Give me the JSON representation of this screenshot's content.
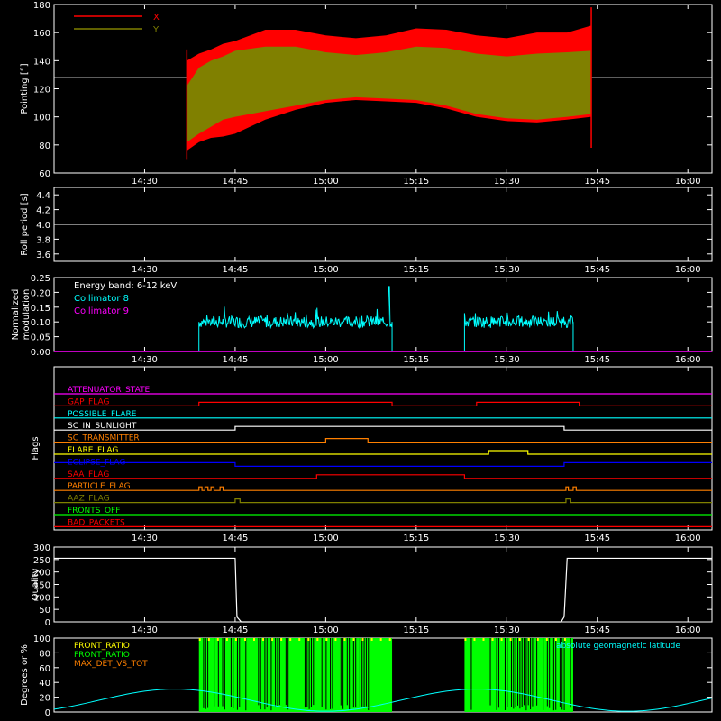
{
  "chart_data": [
    {
      "id": "pointing",
      "type": "area",
      "ylabel": "Pointing [°]",
      "ylim": [
        60,
        180
      ],
      "yticks": [
        60,
        80,
        100,
        120,
        140,
        160,
        180
      ],
      "xticks": [
        "14:30",
        "14:45",
        "15:00",
        "15:15",
        "15:30",
        "15:45",
        "16:00"
      ],
      "xlim_min": [
        -30,
        79
      ],
      "reference_line": 128,
      "legend": [
        {
          "name": "X",
          "color": "#ff0000"
        },
        {
          "name": "Y",
          "color": "#808000"
        }
      ],
      "series": [
        {
          "name": "X",
          "color": "#ff0000",
          "x": [
            -8,
            -6,
            -4,
            -2,
            0,
            5,
            10,
            15,
            20,
            25,
            30,
            35,
            40,
            45,
            50,
            55,
            59
          ],
          "upper": [
            140,
            145,
            148,
            152,
            154,
            162,
            162,
            158,
            156,
            158,
            163,
            162,
            158,
            156,
            160,
            160,
            165
          ],
          "lower": [
            76,
            82,
            85,
            86,
            88,
            98,
            105,
            110,
            112,
            111,
            110,
            106,
            100,
            97,
            96,
            98,
            100
          ]
        },
        {
          "name": "Y",
          "color": "#808000",
          "x": [
            -8,
            -6,
            -4,
            -2,
            0,
            5,
            10,
            15,
            20,
            25,
            30,
            35,
            40,
            45,
            50,
            55,
            59
          ],
          "upper": [
            122,
            135,
            140,
            143,
            147,
            150,
            150,
            146,
            144,
            146,
            150,
            149,
            145,
            143,
            145,
            146,
            147
          ],
          "lower": [
            82,
            88,
            93,
            98,
            100,
            104,
            108,
            112,
            114,
            113,
            112,
            108,
            102,
            99,
            98,
            100,
            102
          ]
        }
      ]
    },
    {
      "id": "roll",
      "type": "line",
      "ylabel": "Roll period [s]",
      "ylim": [
        3.5,
        4.5
      ],
      "yticks": [
        "3.6",
        "3.8",
        "4.0",
        "4.2",
        "4.4"
      ],
      "ytick_values": [
        3.6,
        3.8,
        4.0,
        4.2,
        4.4
      ],
      "xticks": [
        "14:30",
        "14:45",
        "15:00",
        "15:15",
        "15:30",
        "15:45",
        "16:00"
      ],
      "value": 4.0
    },
    {
      "id": "modulation",
      "type": "line",
      "ylabel_lines": [
        "Normalized",
        "modulation"
      ],
      "ylim": [
        0,
        0.25
      ],
      "yticks": [
        "0.00",
        "0.05",
        "0.10",
        "0.15",
        "0.20",
        "0.25"
      ],
      "ytick_values": [
        0,
        0.05,
        0.1,
        0.15,
        0.2,
        0.25
      ],
      "xticks": [
        "14:30",
        "14:45",
        "15:00",
        "15:15",
        "15:30",
        "15:45",
        "16:00"
      ],
      "annotation": "Energy band: 6-12 keV",
      "series": [
        {
          "name": "Collimator 8",
          "color": "#00ffff",
          "segments": [
            {
              "x0": -6,
              "x1": 26,
              "level": 0.1,
              "spike": 0.22,
              "spike_at": 25.5
            },
            {
              "x0": 38,
              "x1": 56,
              "level": 0.1,
              "spike": 0.13,
              "spike_at": 45
            }
          ]
        },
        {
          "name": "Collimator 9",
          "color": "#ff00ff",
          "value": 0
        }
      ]
    },
    {
      "id": "flags",
      "type": "line",
      "ylabel": "Flags",
      "xticks": [
        "14:30",
        "14:45",
        "15:00",
        "15:15",
        "15:30",
        "15:45",
        "16:00"
      ],
      "series": [
        {
          "name": "ATTENUATOR_STATE",
          "color": "#ff00ff",
          "transitions": [],
          "start": 0
        },
        {
          "name": "GAP_FLAG",
          "color": "#ff0000",
          "transitions": [
            -6,
            26,
            40,
            57
          ],
          "start": 0
        },
        {
          "name": "POSSIBLE_FLARE",
          "color": "#00ffff",
          "transitions": [],
          "start": 0
        },
        {
          "name": "SC_IN_SUNLIGHT",
          "color": "#ffffff",
          "transitions": [
            0,
            54.5
          ],
          "start": 0
        },
        {
          "name": "SC_TRANSMITTER",
          "color": "#ff8000",
          "transitions": [
            15,
            22
          ],
          "start": 0
        },
        {
          "name": "FLARE_FLAG",
          "color": "#ffff00",
          "transitions": [
            42,
            48.5
          ],
          "start": 0
        },
        {
          "name": "ECLIPSE_FLAG",
          "color": "#0000ff",
          "transitions": [
            0,
            54.5
          ],
          "start": 1
        },
        {
          "name": "SAA_FLAG",
          "color": "#ff0000",
          "transitions": [
            13.5,
            38
          ],
          "start": 0
        },
        {
          "name": "PARTICLE_FLAG",
          "color": "#ff8000",
          "transitions": [
            -6,
            -5.5,
            -5,
            -4.5,
            -4,
            -3.5,
            -2.5,
            -2,
            54.8,
            55.2,
            56,
            56.5
          ],
          "start": 0
        },
        {
          "name": "AAZ_FLAG",
          "color": "#808000",
          "transitions": [
            0,
            0.8,
            54.8,
            55.6
          ],
          "start": 0
        },
        {
          "name": "FRONTS_OFF",
          "color": "#00ff00",
          "transitions": [],
          "start": 0
        },
        {
          "name": "BAD_PACKETS",
          "color": "#ff0000",
          "transitions": [],
          "start": 0
        }
      ]
    },
    {
      "id": "quality",
      "type": "line",
      "ylabel": "Quality",
      "ylim": [
        0,
        300
      ],
      "yticks": [
        "0",
        "50",
        "100",
        "150",
        "200",
        "250",
        "300"
      ],
      "ytick_values": [
        0,
        50,
        100,
        150,
        200,
        250,
        300
      ],
      "xticks": [
        "14:30",
        "14:45",
        "15:00",
        "15:15",
        "15:30",
        "15:45",
        "16:00"
      ],
      "x": [
        -30,
        0,
        0.3,
        1,
        54,
        54.5,
        55,
        79
      ],
      "y": [
        255,
        255,
        20,
        0,
        0,
        20,
        255,
        255
      ]
    },
    {
      "id": "front_ratio",
      "type": "line",
      "ylabel": "Degrees or %",
      "ylim": [
        0,
        100
      ],
      "yticks": [
        "0",
        "20",
        "40",
        "60",
        "80",
        "100"
      ],
      "ytick_values": [
        0,
        20,
        40,
        60,
        80,
        100
      ],
      "legend": [
        {
          "name": "FRONT_RATIO",
          "color": "#ffff00"
        },
        {
          "name": "FRONT_RATIO",
          "color": "#00ff00"
        },
        {
          "name": "MAX_DET_VS_TOT",
          "color": "#ff8000"
        },
        {
          "name": "absolute geomagnetic latitude",
          "color": "#00ffff"
        }
      ],
      "green_blocks": [
        [
          -6,
          26
        ],
        [
          38,
          56
        ]
      ],
      "latitude": {
        "amplitude": 15,
        "offset": 16,
        "period": 50,
        "phase": -10
      }
    }
  ]
}
